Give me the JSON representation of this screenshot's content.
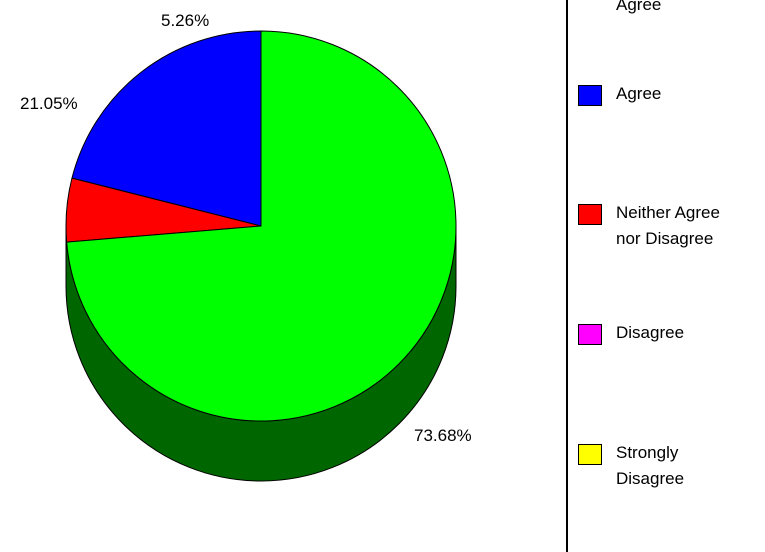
{
  "chart_data": {
    "type": "pie",
    "title": "",
    "slices": [
      {
        "label": "Agree",
        "value": 21.05,
        "label_text": "21.05%",
        "color": "#0000ff"
      },
      {
        "label": "Neither Agree\nnor Disagree",
        "value": 5.26,
        "label_text": "5.26%",
        "color": "#ff0000"
      },
      {
        "label": "Strongly Agree",
        "value": 73.68,
        "label_text": "73.68%",
        "color": "#00ff00"
      }
    ],
    "legend": {
      "placement": "right",
      "items": [
        {
          "label": "Agree",
          "color": "#00ff00",
          "partial_visible_text": "Agree"
        },
        {
          "label": "Agree",
          "color": "#0000ff"
        },
        {
          "label": "Neither Agree\nnor Disagree",
          "color": "#ff0000"
        },
        {
          "label": "Disagree",
          "color": "#ff00ff"
        },
        {
          "label": "Strongly\nDisagree",
          "color": "#ffff00"
        }
      ]
    },
    "depth_color": "#006600"
  }
}
